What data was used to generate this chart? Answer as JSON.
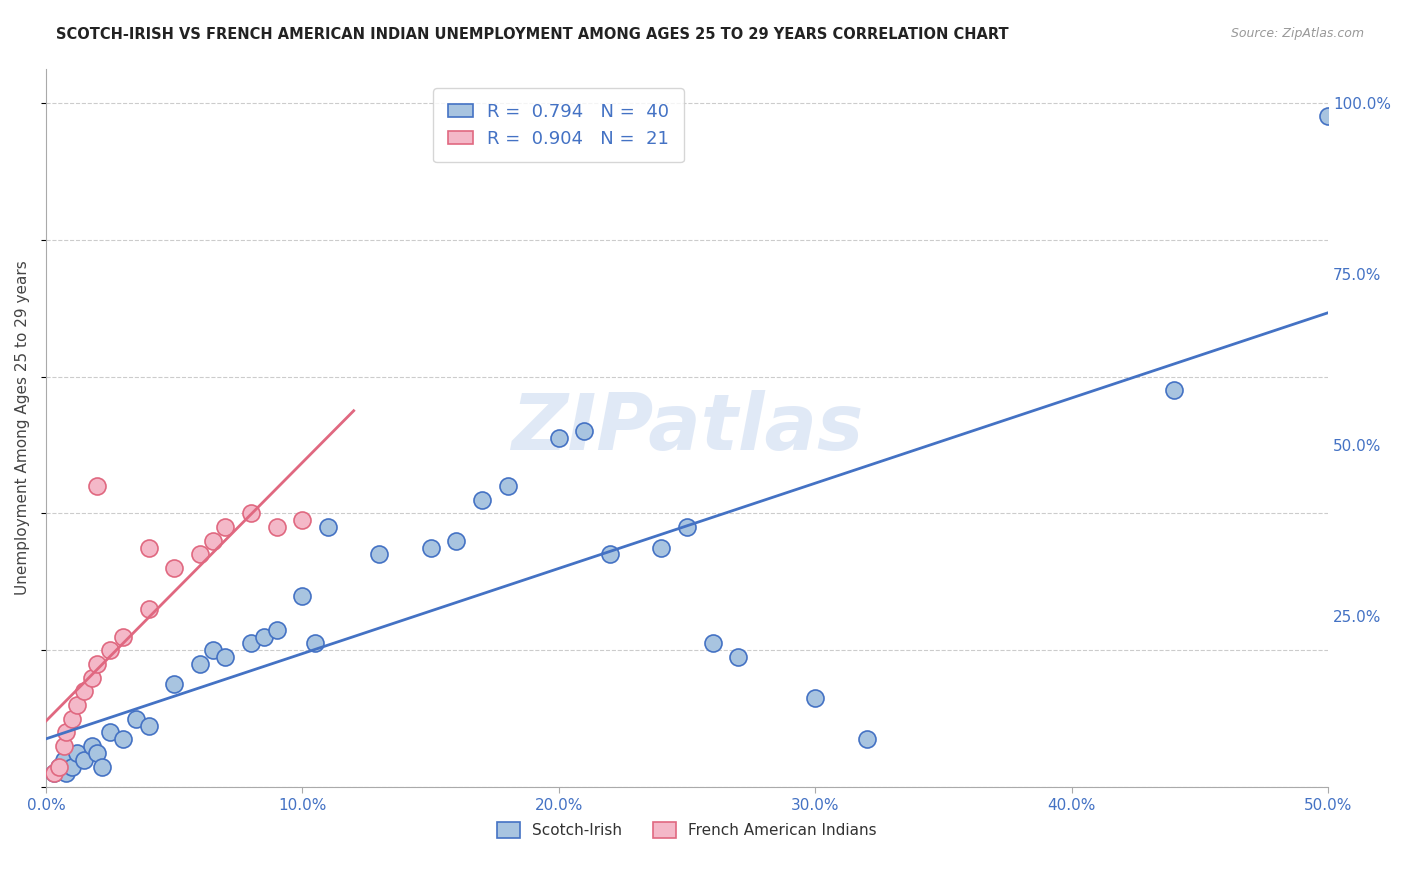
{
  "title": "SCOTCH-IRISH VS FRENCH AMERICAN INDIAN UNEMPLOYMENT AMONG AGES 25 TO 29 YEARS CORRELATION CHART",
  "source": "Source: ZipAtlas.com",
  "xlabel_ticks": [
    "0.0%",
    "10.0%",
    "20.0%",
    "30.0%",
    "40.0%",
    "50.0%"
  ],
  "ylabel_ticks": [
    "100.0%",
    "75.0%",
    "50.0%",
    "25.0%"
  ],
  "xlabel_tick_vals": [
    0,
    0.1,
    0.2,
    0.3,
    0.4,
    0.5
  ],
  "ylabel_tick_vals": [
    1.0,
    0.75,
    0.5,
    0.25
  ],
  "ylabel": "Unemployment Among Ages 25 to 29 years",
  "xlim": [
    0,
    0.5
  ],
  "ylim": [
    0,
    1.05
  ],
  "watermark": "ZIPatlas",
  "legend_blue_r": "0.794",
  "legend_blue_n": "40",
  "legend_pink_r": "0.904",
  "legend_pink_n": "21",
  "blue_scatter_x": [
    0.003,
    0.005,
    0.007,
    0.008,
    0.01,
    0.012,
    0.015,
    0.018,
    0.02,
    0.022,
    0.025,
    0.03,
    0.035,
    0.04,
    0.05,
    0.06,
    0.065,
    0.07,
    0.08,
    0.085,
    0.09,
    0.1,
    0.105,
    0.11,
    0.13,
    0.15,
    0.16,
    0.17,
    0.18,
    0.2,
    0.21,
    0.22,
    0.24,
    0.25,
    0.26,
    0.27,
    0.3,
    0.32,
    0.44,
    0.5
  ],
  "blue_scatter_y": [
    0.02,
    0.03,
    0.04,
    0.02,
    0.03,
    0.05,
    0.04,
    0.06,
    0.05,
    0.03,
    0.08,
    0.07,
    0.1,
    0.09,
    0.15,
    0.18,
    0.2,
    0.19,
    0.21,
    0.22,
    0.23,
    0.28,
    0.21,
    0.38,
    0.34,
    0.35,
    0.36,
    0.42,
    0.44,
    0.51,
    0.52,
    0.34,
    0.35,
    0.38,
    0.21,
    0.19,
    0.13,
    0.07,
    0.58,
    0.98
  ],
  "pink_scatter_x": [
    0.003,
    0.005,
    0.007,
    0.008,
    0.01,
    0.012,
    0.015,
    0.018,
    0.02,
    0.025,
    0.03,
    0.04,
    0.05,
    0.06,
    0.065,
    0.07,
    0.08,
    0.09,
    0.1,
    0.02,
    0.04
  ],
  "pink_scatter_y": [
    0.02,
    0.03,
    0.06,
    0.08,
    0.1,
    0.12,
    0.14,
    0.16,
    0.18,
    0.2,
    0.22,
    0.26,
    0.32,
    0.34,
    0.36,
    0.38,
    0.4,
    0.38,
    0.39,
    0.44,
    0.35
  ],
  "blue_color": "#a8c4e0",
  "pink_color": "#f4b8c8",
  "blue_line_color": "#4472C4",
  "pink_line_color": "#e06880",
  "title_color": "#222222",
  "axis_color": "#4472C4",
  "grid_color": "#cccccc",
  "background_color": "#ffffff",
  "legend_bg": "#ffffff"
}
